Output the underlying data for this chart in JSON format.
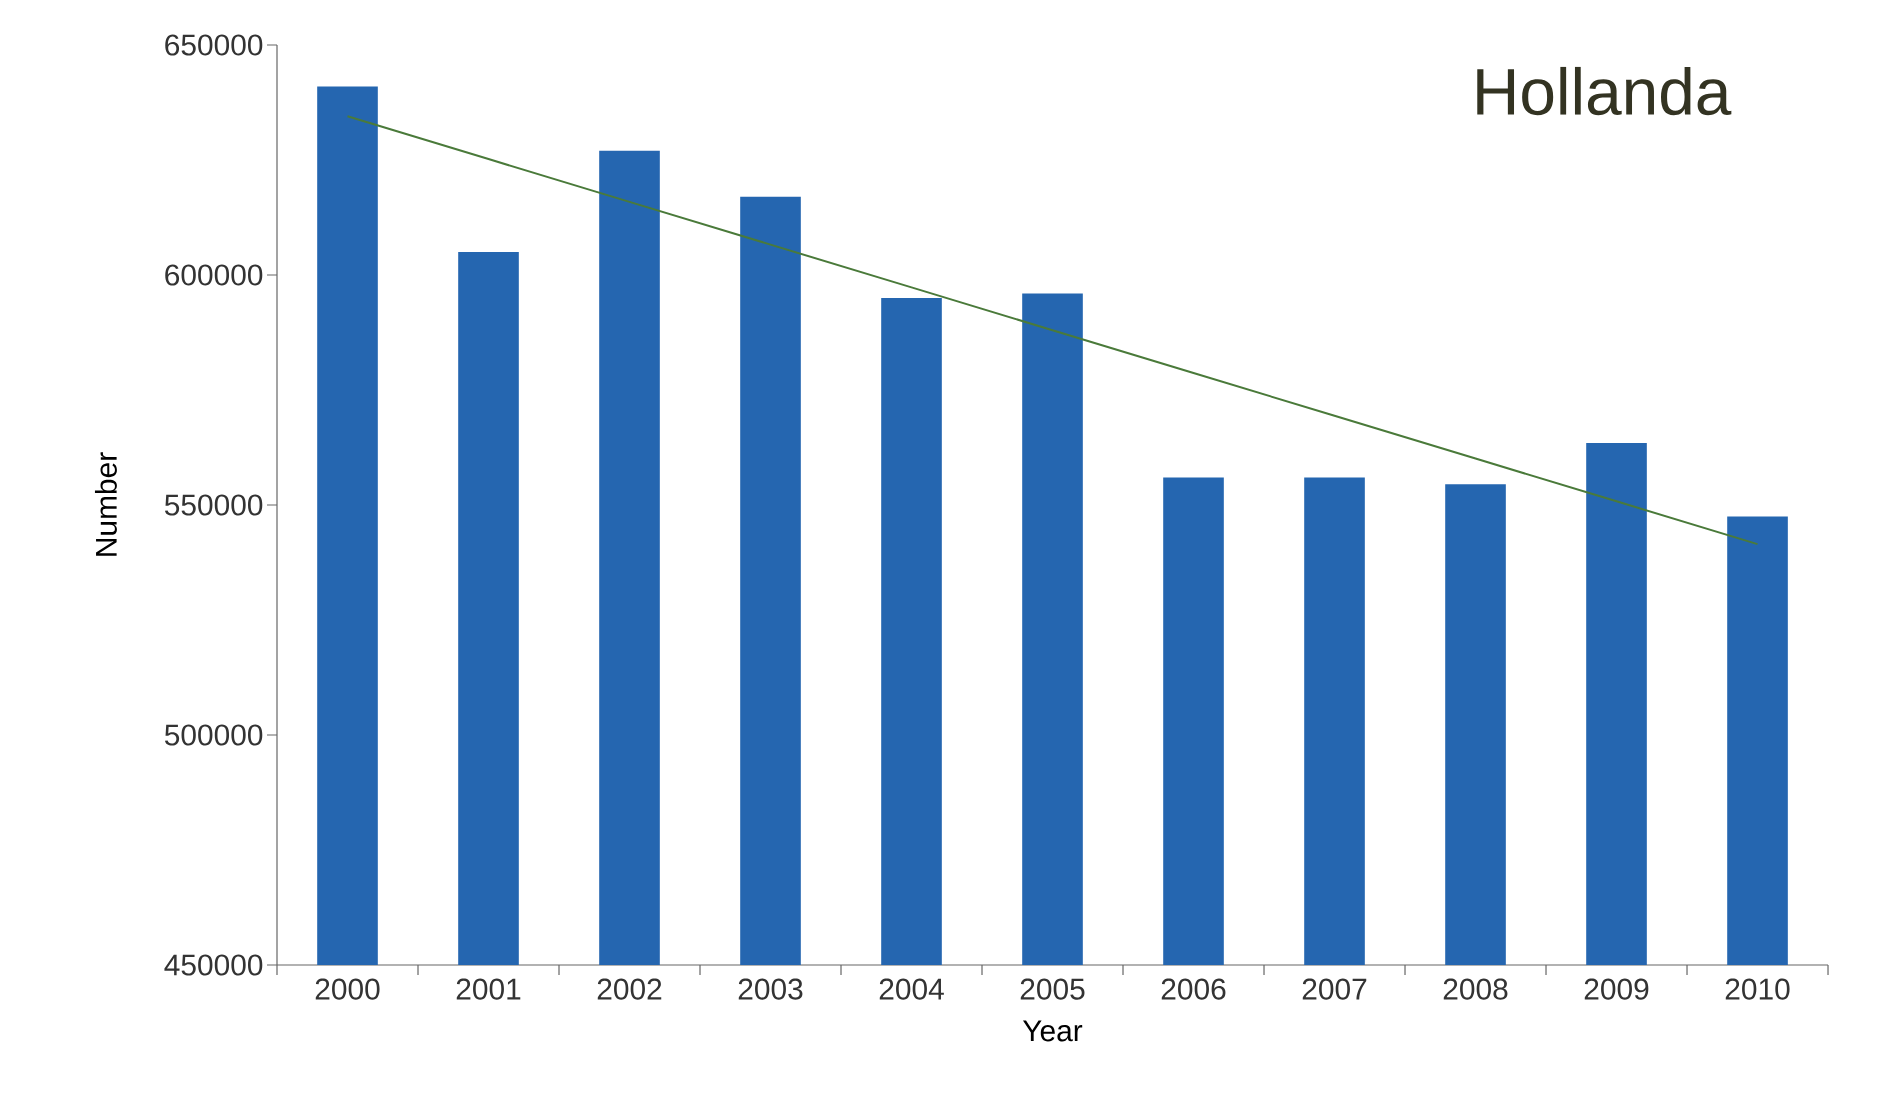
{
  "chart_data": {
    "type": "bar",
    "title": "Hollanda",
    "xlabel": "Year",
    "ylabel": "Number",
    "categories": [
      "2000",
      "2001",
      "2002",
      "2003",
      "2004",
      "2005",
      "2006",
      "2007",
      "2008",
      "2009",
      "2010"
    ],
    "series": [
      {
        "color": "#2566b0",
        "values": [
          641000,
          605000,
          627000,
          617000,
          595000,
          596000,
          556000,
          556000,
          554500,
          563500,
          547500
        ]
      },
      {
        "type": "line",
        "color": "#4a7a3a",
        "values": [
          634500,
          625200,
          615900,
          606600,
          597300,
          588000,
          578700,
          569400,
          560100,
          550800,
          541500
        ]
      }
    ],
    "ylim": [
      450000,
      650000
    ],
    "yticks": [
      450000,
      500000,
      550000,
      600000,
      650000
    ]
  }
}
